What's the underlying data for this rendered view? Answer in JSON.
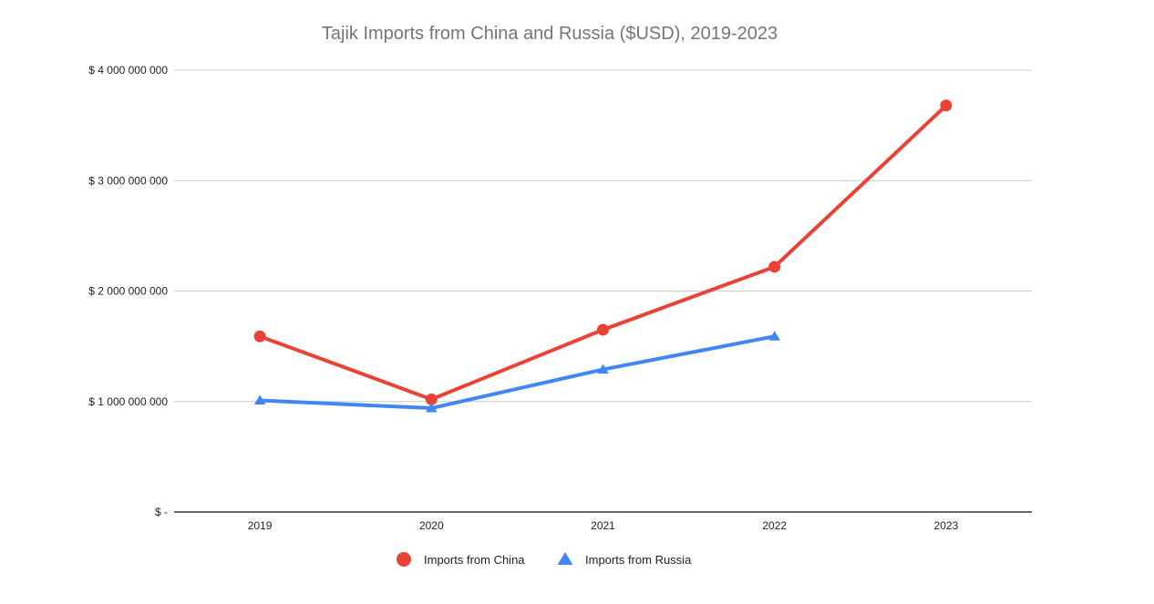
{
  "chart_data": {
    "type": "line",
    "title": "Tajik Imports from China and Russia ($USD), 2019-2023",
    "xlabel": "",
    "ylabel": "",
    "categories": [
      "2019",
      "2020",
      "2021",
      "2022",
      "2023"
    ],
    "ylim": [
      0,
      4000000000
    ],
    "yticks": [
      0,
      1000000000,
      2000000000,
      3000000000,
      4000000000
    ],
    "ytick_labels": [
      "$ -",
      "$ 1 000 000 000",
      "$ 2 000 000 000",
      "$ 3 000 000 000",
      "$ 4 000 000 000"
    ],
    "grid": true,
    "legend_position": "bottom",
    "series": [
      {
        "name": "Imports from China",
        "color": "#ea4335",
        "marker": "circle",
        "values": [
          1590000000,
          1020000000,
          1650000000,
          2220000000,
          3680000000
        ]
      },
      {
        "name": "Imports from Russia",
        "color": "#4285f4",
        "marker": "triangle",
        "values": [
          1010000000,
          940000000,
          1290000000,
          1590000000,
          null
        ]
      }
    ]
  }
}
